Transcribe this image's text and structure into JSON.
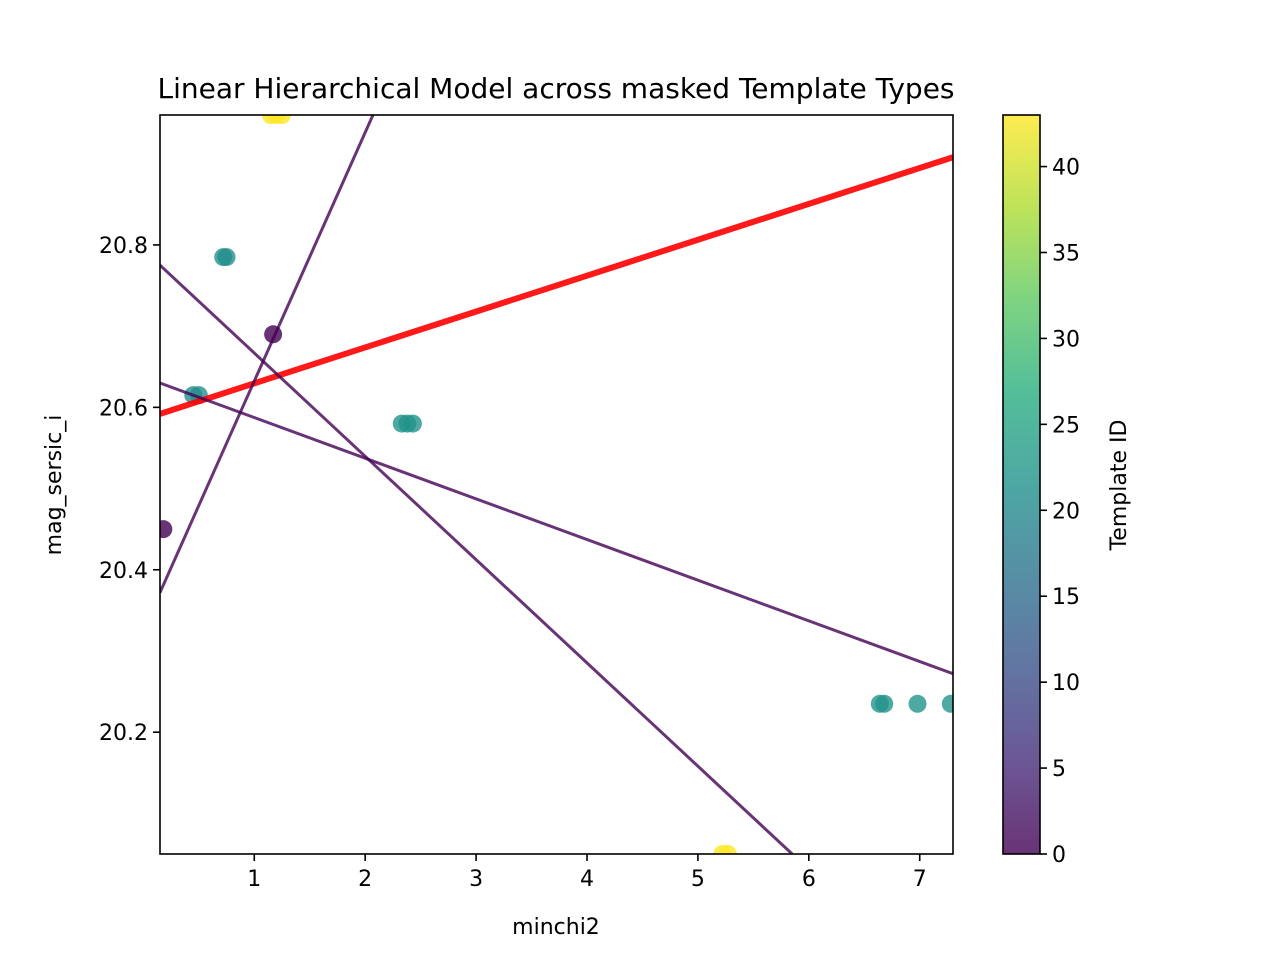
{
  "chart_data": {
    "type": "scatter",
    "title": "Linear Hierarchical Model across masked Template Types",
    "xlabel": "minchi2",
    "ylabel": "mag_sersic_i",
    "xlim": [
      0.15,
      7.3
    ],
    "ylim": [
      20.05,
      20.96
    ],
    "xticks": [
      "1",
      "2",
      "3",
      "4",
      "5",
      "6",
      "7"
    ],
    "yticks": [
      "20.2",
      "20.4",
      "20.6",
      "20.8"
    ],
    "grid": false,
    "colorbar": {
      "label": "Template ID",
      "range": [
        0,
        43
      ],
      "ticks": [
        "0",
        "5",
        "10",
        "15",
        "20",
        "25",
        "30",
        "35",
        "40"
      ],
      "colormap": "viridis"
    },
    "points": [
      {
        "x": 1.15,
        "y": 20.96,
        "template": 43
      },
      {
        "x": 1.2,
        "y": 20.96,
        "template": 43
      },
      {
        "x": 1.25,
        "y": 20.96,
        "template": 43
      },
      {
        "x": 0.72,
        "y": 20.785,
        "template": 21
      },
      {
        "x": 0.75,
        "y": 20.785,
        "template": 21
      },
      {
        "x": 1.17,
        "y": 20.69,
        "template": 0
      },
      {
        "x": 0.45,
        "y": 20.615,
        "template": 21
      },
      {
        "x": 0.5,
        "y": 20.615,
        "template": 21
      },
      {
        "x": 2.33,
        "y": 20.58,
        "template": 22
      },
      {
        "x": 2.38,
        "y": 20.58,
        "template": 22
      },
      {
        "x": 2.43,
        "y": 20.58,
        "template": 22
      },
      {
        "x": 0.18,
        "y": 20.45,
        "template": 0
      },
      {
        "x": 6.64,
        "y": 20.235,
        "template": 22
      },
      {
        "x": 6.68,
        "y": 20.235,
        "template": 22
      },
      {
        "x": 6.98,
        "y": 20.235,
        "template": 22
      },
      {
        "x": 7.28,
        "y": 20.235,
        "template": 22
      },
      {
        "x": 5.22,
        "y": 20.05,
        "template": 43
      },
      {
        "x": 5.27,
        "y": 20.05,
        "template": 43
      }
    ],
    "lines": [
      {
        "x": [
          0.15,
          7.3
        ],
        "y": [
          20.592,
          20.908
        ],
        "color": "#ff0000",
        "role": "population-fit"
      },
      {
        "x": [
          0.15,
          2.08
        ],
        "y": [
          20.372,
          20.963
        ],
        "color": "#440154",
        "role": "group-fit"
      },
      {
        "x": [
          0.15,
          5.85
        ],
        "y": [
          20.775,
          20.05
        ],
        "color": "#440154",
        "role": "group-fit"
      },
      {
        "x": [
          0.15,
          7.3
        ],
        "y": [
          20.63,
          20.272
        ],
        "color": "#440154",
        "role": "group-fit"
      }
    ]
  }
}
